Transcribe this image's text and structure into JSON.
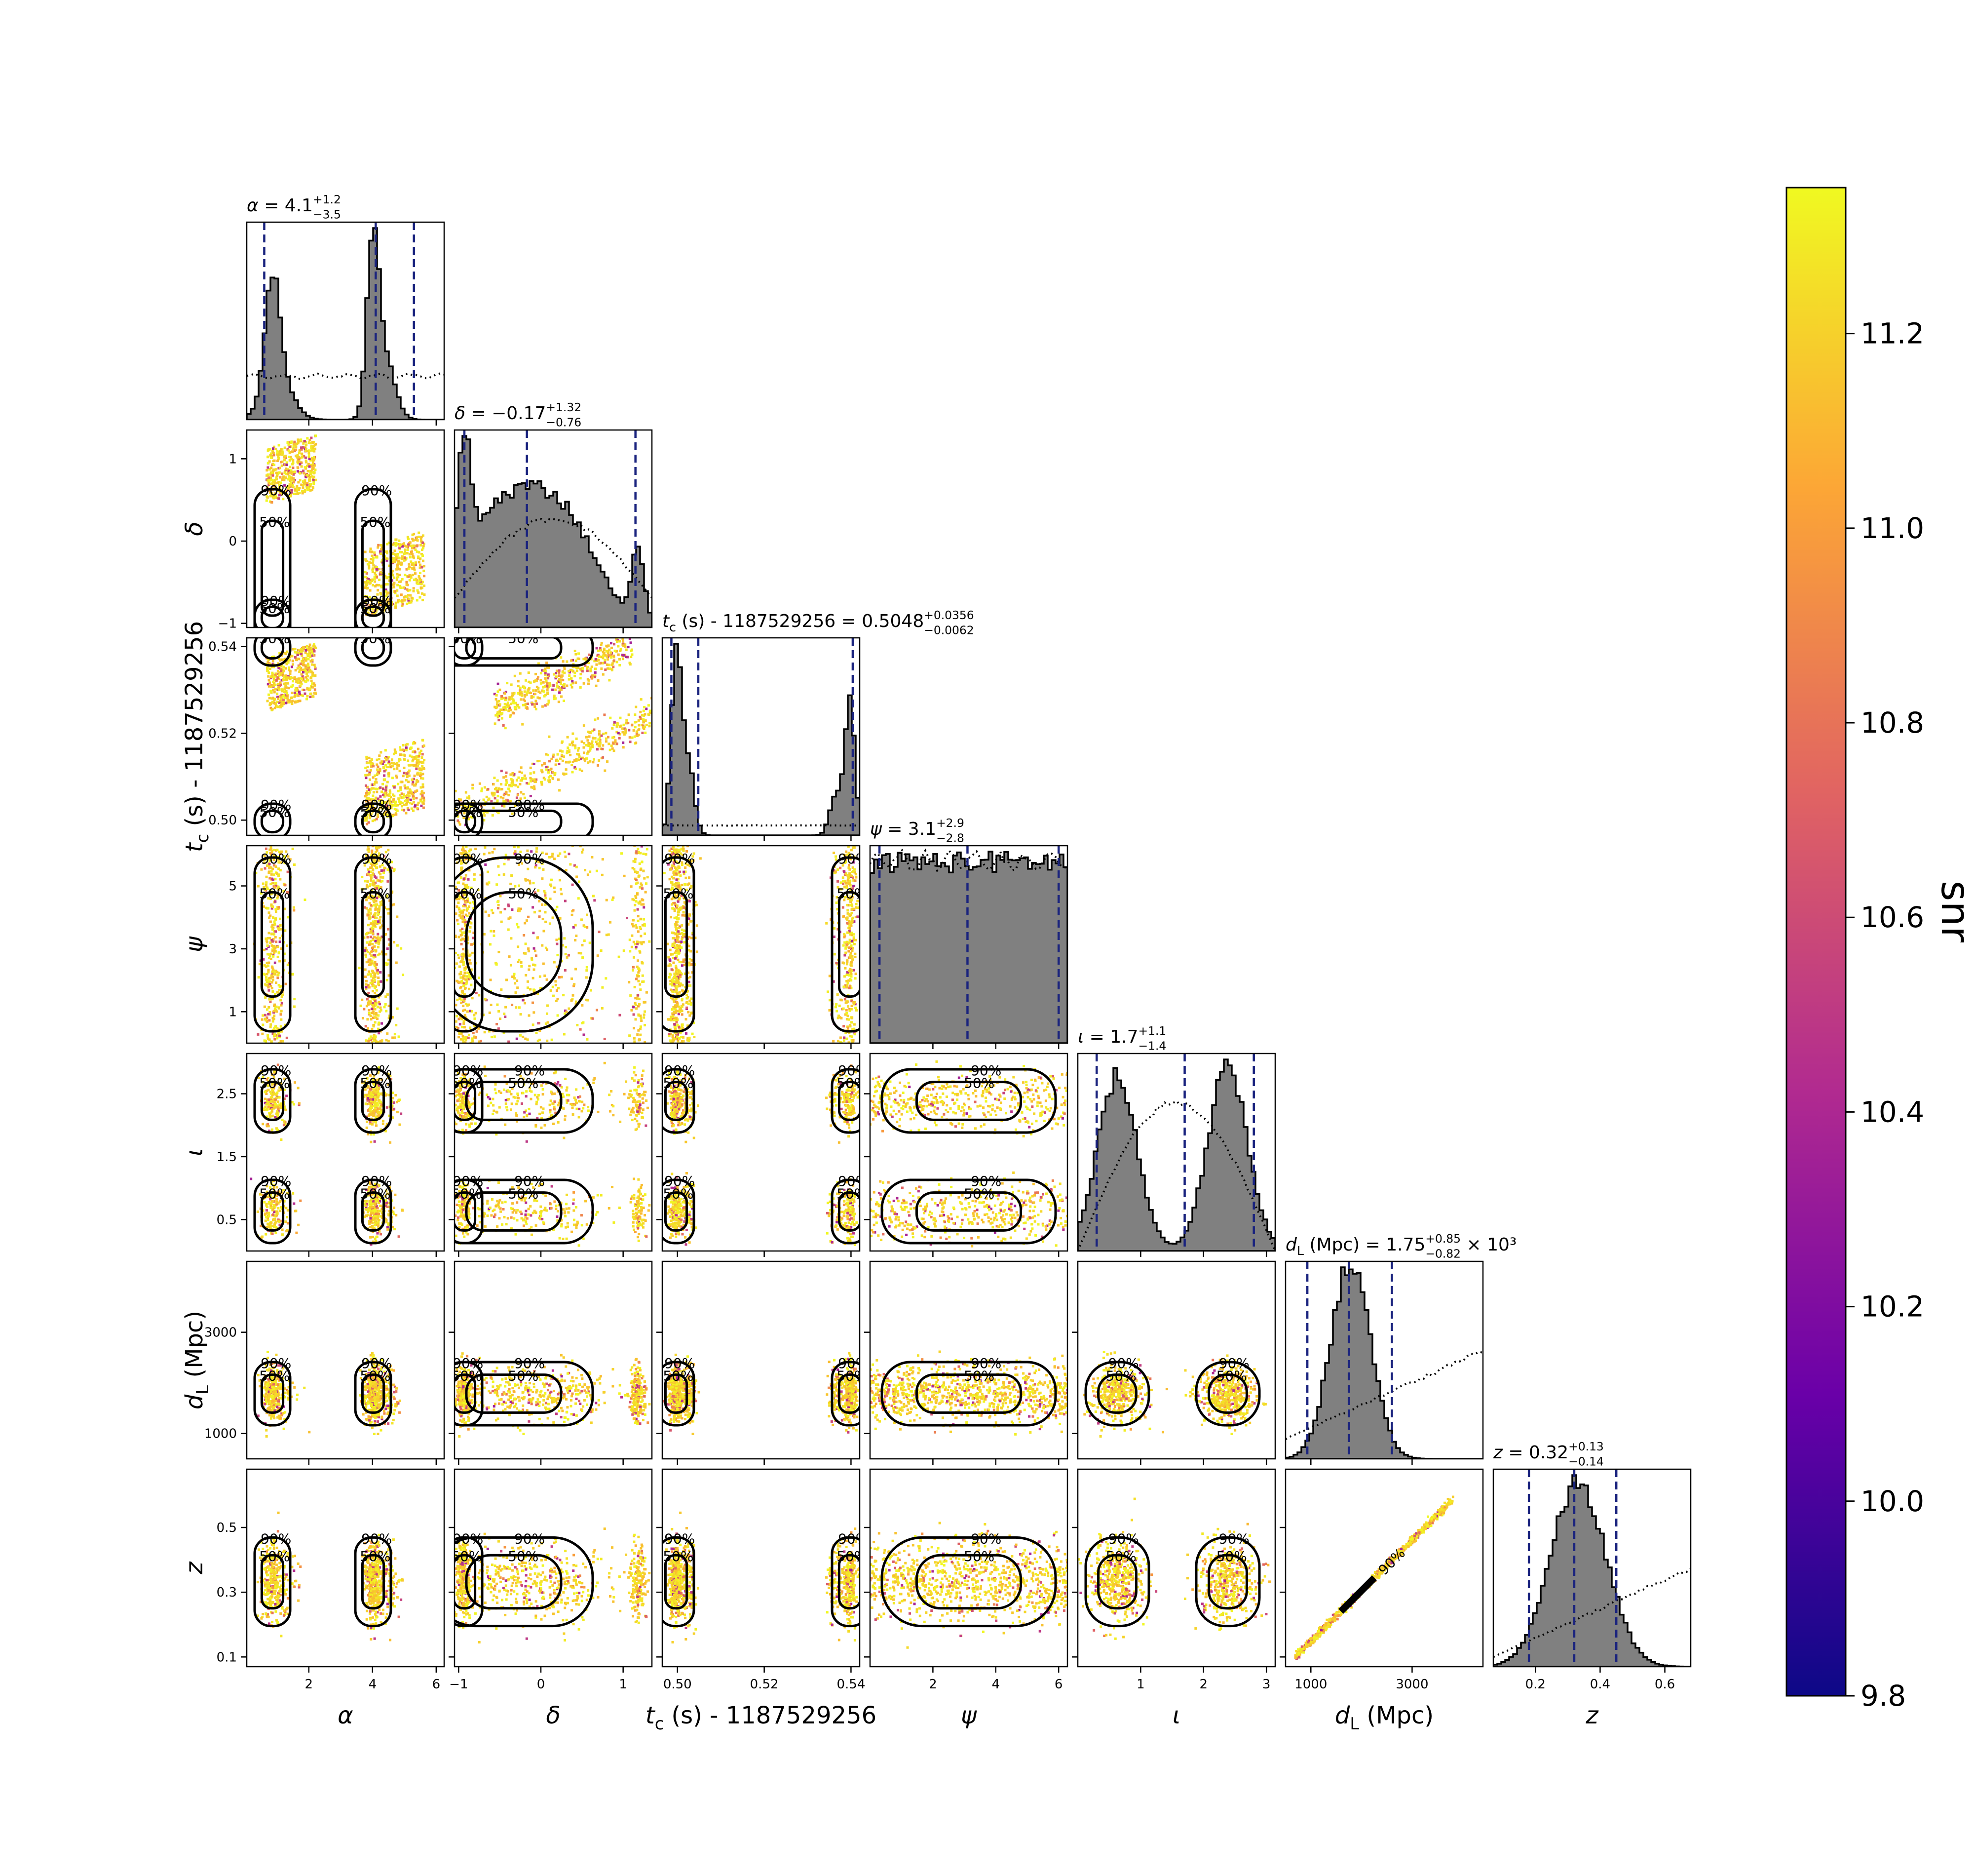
{
  "chart_data": {
    "type": "corner",
    "parameters": [
      {
        "key": "alpha",
        "axis_label": "α",
        "title_name": "α",
        "median": "4.1",
        "plus": "+1.2",
        "minus": "−3.5",
        "suffix": "",
        "range": [
          0.05,
          6.25
        ],
        "ticks": [
          2,
          4,
          6
        ],
        "tick_labels": [
          "2",
          "4",
          "6"
        ],
        "quantiles": [
          0.6,
          4.1,
          5.3
        ]
      },
      {
        "key": "delta",
        "axis_label": "δ",
        "title_name": "δ",
        "median": "−0.17",
        "plus": "+1.32",
        "minus": "−0.76",
        "suffix": "",
        "range": [
          -1.05,
          1.35
        ],
        "ticks": [
          -1,
          0,
          1
        ],
        "tick_labels": [
          "−1",
          "0",
          "1"
        ],
        "quantiles": [
          -0.93,
          -0.17,
          1.15
        ]
      },
      {
        "key": "tc",
        "axis_label": "t_c (s) - 1187529256",
        "title_name": "t_c (s) - 1187529256",
        "median": "0.5048",
        "plus": "+0.0356",
        "minus": "−0.0062",
        "suffix": "",
        "range": [
          0.4965,
          0.542
        ],
        "ticks": [
          0.5,
          0.52,
          0.54
        ],
        "tick_labels": [
          "0.50",
          "0.52",
          "0.54"
        ],
        "quantiles": [
          0.4986,
          0.5048,
          0.5404
        ]
      },
      {
        "key": "psi",
        "axis_label": "ψ",
        "title_name": "ψ",
        "median": "3.1",
        "plus": "+2.9",
        "minus": "−2.8",
        "suffix": "",
        "range": [
          0.0,
          6.28
        ],
        "ticks": [
          2,
          4,
          6
        ],
        "tick_labels": [
          "2",
          "4",
          "6"
        ],
        "y_ticks": [
          1,
          3,
          5
        ],
        "y_tick_labels": [
          "1",
          "3",
          "5"
        ],
        "quantiles": [
          0.3,
          3.1,
          6.0
        ]
      },
      {
        "key": "iota",
        "axis_label": "ι",
        "title_name": "ι",
        "median": "1.7",
        "plus": "+1.1",
        "minus": "−1.4",
        "suffix": "",
        "range": [
          0.0,
          3.14
        ],
        "ticks": [
          1,
          2,
          3
        ],
        "tick_labels": [
          "1",
          "2",
          "3"
        ],
        "y_ticks": [
          0.5,
          1.5,
          2.5
        ],
        "y_tick_labels": [
          "0.5",
          "1.5",
          "2.5"
        ],
        "quantiles": [
          0.3,
          1.7,
          2.8
        ]
      },
      {
        "key": "dL",
        "axis_label": "d_L (Mpc)",
        "title_name": "d_L (Mpc)",
        "median": "1.75",
        "plus": "+0.85",
        "minus": "−0.82",
        "suffix": "× 10³",
        "range": [
          500,
          4400
        ],
        "ticks": [
          1000,
          3000
        ],
        "tick_labels": [
          "1000",
          "3000"
        ],
        "quantiles": [
          930,
          1750,
          2600
        ]
      },
      {
        "key": "z",
        "axis_label": "z",
        "title_name": "z",
        "median": "0.32",
        "plus": "+0.13",
        "minus": "−0.14",
        "suffix": "",
        "range": [
          0.07,
          0.68
        ],
        "ticks": [
          0.2,
          0.4,
          0.6
        ],
        "tick_labels": [
          "0.2",
          "0.4",
          "0.6"
        ],
        "y_ticks": [
          0.1,
          0.3,
          0.5
        ],
        "y_tick_labels": [
          "0.1",
          "0.3",
          "0.5"
        ],
        "quantiles": [
          0.18,
          0.32,
          0.45
        ]
      }
    ],
    "contour_levels": [
      "50%",
      "90%"
    ],
    "colorbar": {
      "label": "snr",
      "range": [
        9.8,
        11.35
      ],
      "ticks": [
        "9.8",
        "10.0",
        "10.2",
        "10.4",
        "10.6",
        "10.8",
        "11.0",
        "11.2"
      ],
      "colormap": [
        "#0d0887",
        "#6a00a8",
        "#b12a90",
        "#e16462",
        "#fca636",
        "#f0f921"
      ]
    },
    "colors": {
      "histogram_fill": "#808080",
      "quantile_lines": "#1a237e",
      "prior_line": "#000000",
      "contours": "#000000",
      "points_main": "#f9c22e"
    }
  }
}
